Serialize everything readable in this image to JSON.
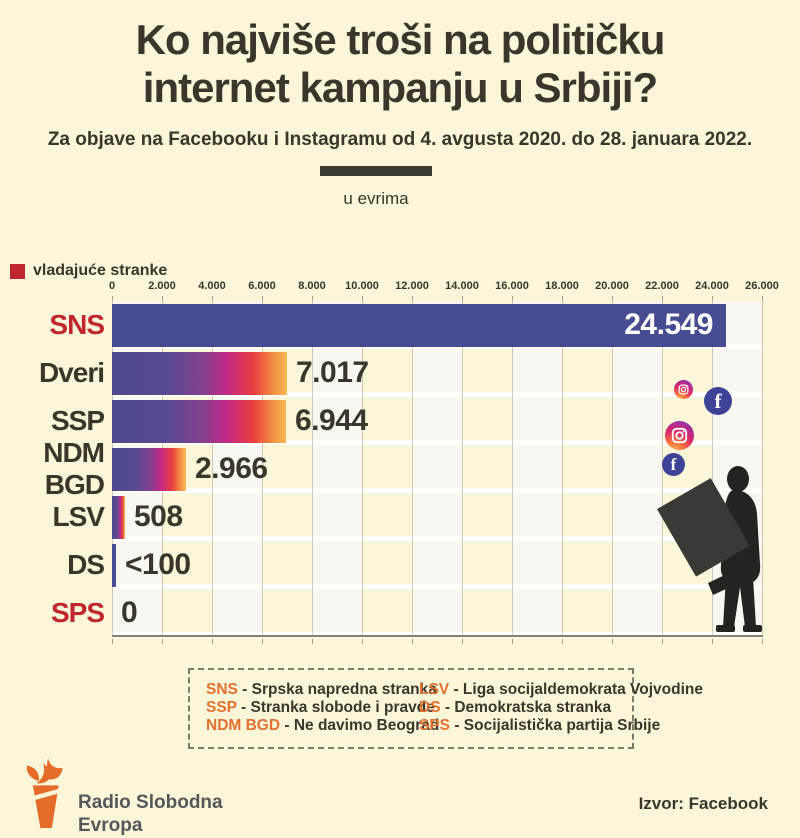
{
  "header": {
    "title_line1": "Ko najviše troši na političku",
    "title_line2": "internet kampanju u Srbiji?",
    "subtitle": "Za objave na Facebooku i Instagramu od 4. avgusta 2020. do 28. januara 2022.",
    "unit_label": "u evrima"
  },
  "legend": {
    "ruling_parties_label": "vladajuće stranke",
    "ruling_color": "#c0262d"
  },
  "chart_data": {
    "type": "bar",
    "orientation": "horizontal",
    "title": "Ko najviše troši na političku internet kampanju u Srbiji?",
    "unit": "u evrima (EUR)",
    "categories": [
      "SNS",
      "Dveri",
      "SSP",
      "NDM BGD",
      "LSV",
      "DS",
      "SPS"
    ],
    "values": [
      24549,
      7017,
      6944,
      2966,
      508,
      100,
      0
    ],
    "value_labels": [
      "24.549",
      "7.017",
      "6.944",
      "2.966",
      "508",
      "<100",
      "0"
    ],
    "ruling": [
      true,
      false,
      false,
      false,
      false,
      false,
      true
    ],
    "bar_styles": [
      "solid",
      "gradient",
      "gradient",
      "gradient",
      "gradient",
      "solid",
      "none"
    ],
    "xlim": [
      0,
      26000
    ],
    "x_ticks": [
      "0",
      "2.000",
      "4.000",
      "6.000",
      "8.000",
      "10.000",
      "12.000",
      "14.000",
      "16.000",
      "18.000",
      "20.000",
      "22.000",
      "24.000",
      "26.000"
    ],
    "grid": true,
    "colors": {
      "solid_bar": "#474b92",
      "gradient_stops": [
        "#4d4a8f",
        "#84408f",
        "#c32987",
        "#e93e3e",
        "#f9bb55"
      ],
      "stripe": "#f8f7f2",
      "background": "#fbf6d8"
    }
  },
  "legend_box": {
    "separator": " - ",
    "left": [
      {
        "abbr": "SNS",
        "name": "Srpska napredna stranka"
      },
      {
        "abbr": "SSP",
        "name": "Stranka slobode i pravde"
      },
      {
        "abbr": "NDM BGD",
        "name": "Ne davimo Beograd"
      }
    ],
    "right": [
      {
        "abbr": "LSV",
        "name": "Liga socijaldemokrata Vojvodine"
      },
      {
        "abbr": "DS",
        "name": "Demokratska stranka"
      },
      {
        "abbr": "SPS",
        "name": "Socijalistička partija Srbije"
      }
    ]
  },
  "icons": {
    "facebook_glyph": "f",
    "facebook_color": "#3d4297",
    "torch_color": "#e56b28"
  },
  "footer": {
    "brand_line1": "Radio Slobodna",
    "brand_line2": "Evropa",
    "source": "Izvor: Facebook"
  }
}
